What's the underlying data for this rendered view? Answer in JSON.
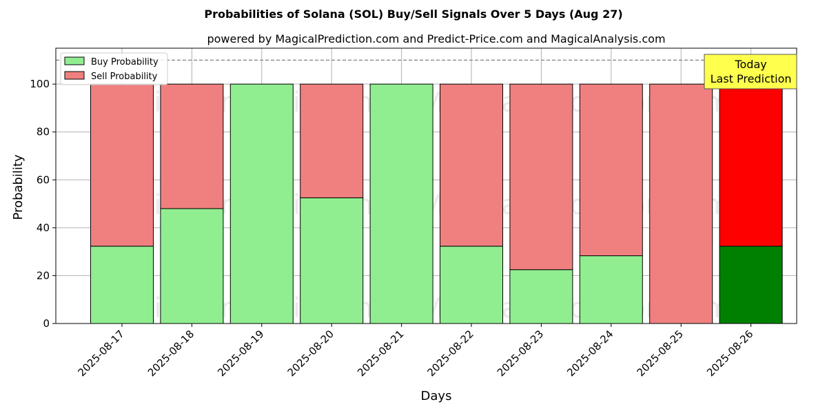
{
  "chart_data": {
    "type": "bar",
    "stacked": true,
    "title": "Probabilities of Solana (SOL) Buy/Sell Signals Over 5 Days (Aug 27)",
    "subtitle": "powered by MagicalPrediction.com and Predict-Price.com and MagicalAnalysis.com",
    "xlabel": "Days",
    "ylabel": "Probability",
    "ylim": [
      0,
      115
    ],
    "yticks": [
      0,
      20,
      40,
      60,
      80,
      100
    ],
    "grid": true,
    "legend_position": "top-left",
    "reference_line": {
      "y": 110,
      "style": "dashed"
    },
    "categories": [
      "2025-08-17",
      "2025-08-18",
      "2025-08-19",
      "2025-08-20",
      "2025-08-21",
      "2025-08-22",
      "2025-08-23",
      "2025-08-24",
      "2025-08-25",
      "2025-08-26"
    ],
    "series": [
      {
        "name": "Buy Probability",
        "color": "#90ee90",
        "highlight_color": "#008000",
        "values": [
          32.3,
          48.0,
          100,
          52.5,
          100,
          32.3,
          22.5,
          28.3,
          0,
          32.3
        ]
      },
      {
        "name": "Sell Probability",
        "color": "#f08080",
        "highlight_color": "#ff0000",
        "values": [
          67.7,
          52.0,
          0,
          47.5,
          0,
          67.7,
          77.5,
          71.7,
          100,
          67.7
        ]
      }
    ],
    "highlight_index": 9,
    "annotation": {
      "lines": [
        "Today",
        "Last Prediction"
      ],
      "background": "#ffff4d"
    },
    "watermarks": [
      "MagicalAnalysis.com",
      "MagicalPrediction.com"
    ]
  }
}
